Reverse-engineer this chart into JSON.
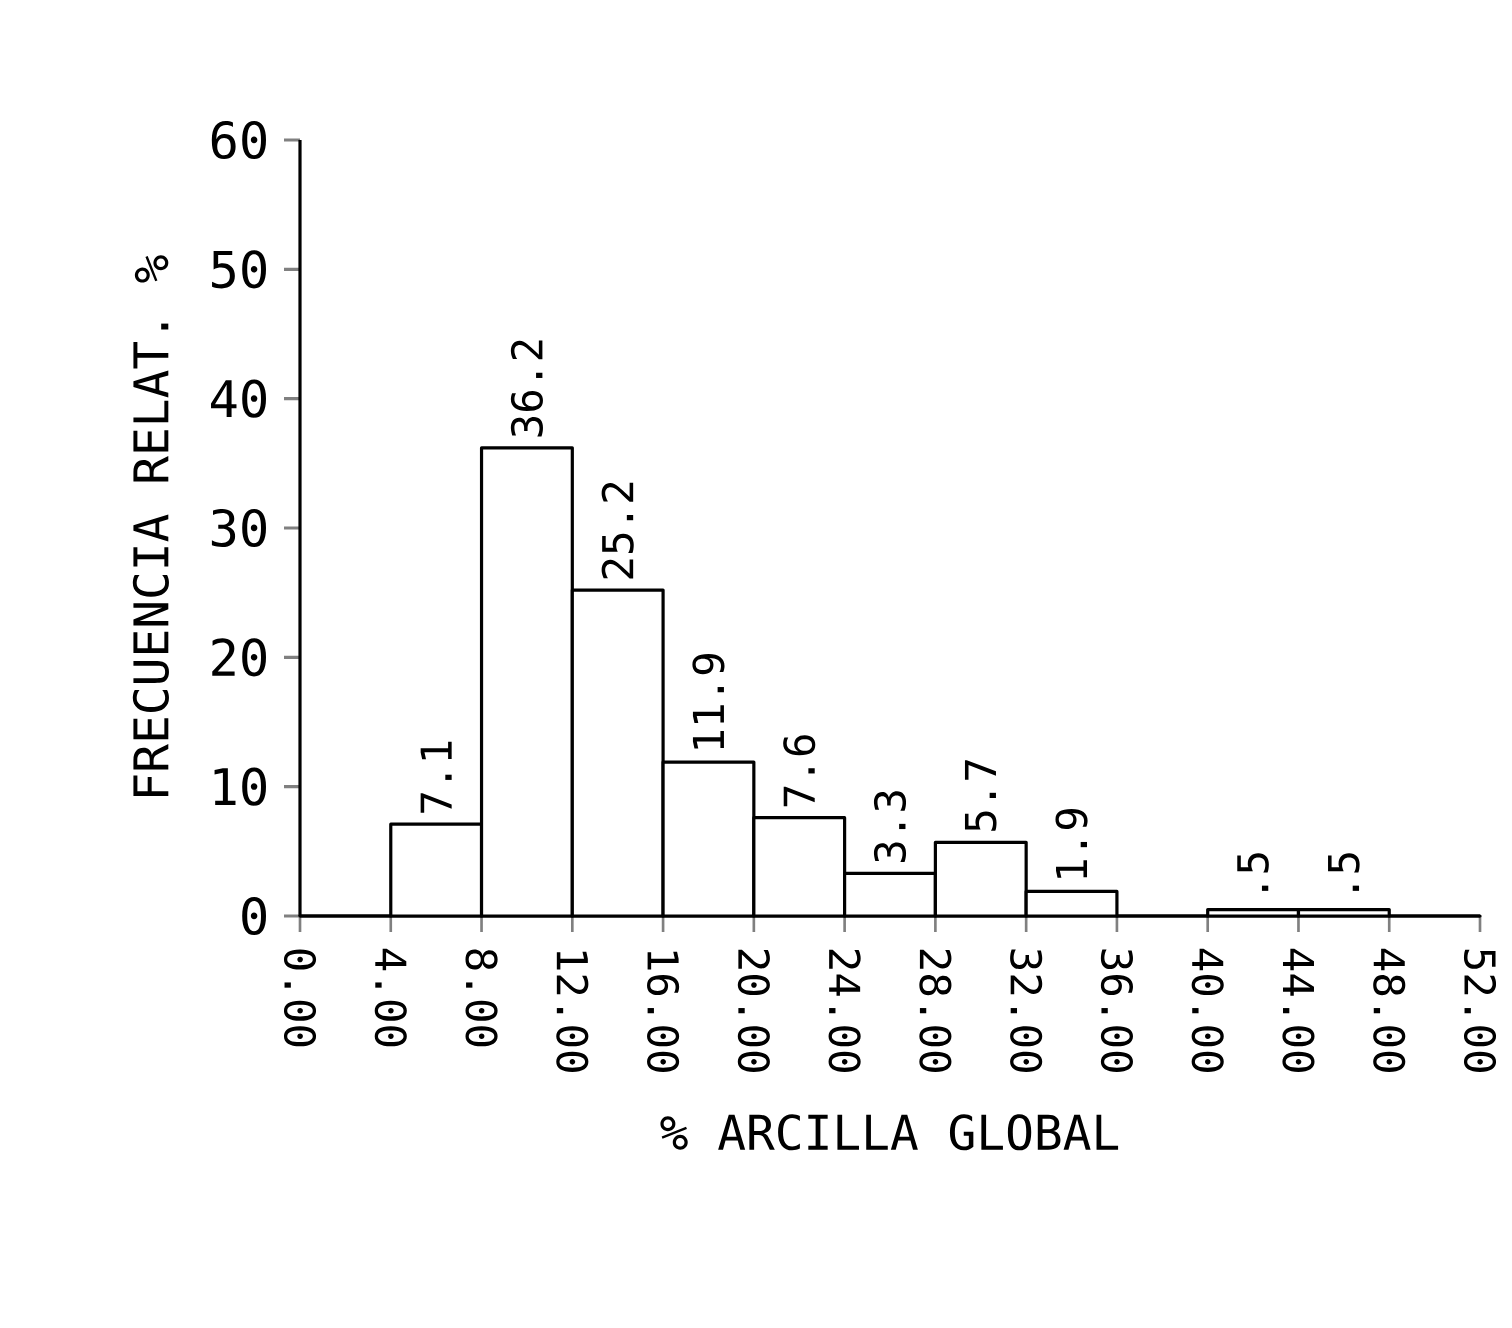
{
  "chart_data": {
    "type": "histogram",
    "xlabel": "% ARCILLA GLOBAL",
    "ylabel": "FRECUENCIA RELAT. %",
    "bins": [
      0,
      4,
      8,
      12,
      16,
      20,
      24,
      28,
      32,
      36,
      40,
      44,
      48,
      52
    ],
    "values": [
      0,
      7.1,
      36.2,
      25.2,
      11.9,
      7.6,
      3.3,
      5.7,
      1.9,
      0,
      0.5,
      0.5,
      0
    ],
    "value_labels": [
      null,
      "7.1",
      "36.2",
      "25.2",
      "11.9",
      "7.6",
      "3.3",
      "5.7",
      "1.9",
      null,
      ".5",
      ".5",
      null
    ],
    "color": "#000000",
    "xlim": [
      0,
      52
    ],
    "ylim": [
      0,
      60
    ],
    "xticks": [
      {
        "value": 0,
        "label": "0.00"
      },
      {
        "value": 4,
        "label": "4.00"
      },
      {
        "value": 8,
        "label": "8.00"
      },
      {
        "value": 12,
        "label": "12.00"
      },
      {
        "value": 16,
        "label": "16.00"
      },
      {
        "value": 20,
        "label": "20.00"
      },
      {
        "value": 24,
        "label": "24.00"
      },
      {
        "value": 28,
        "label": "28.00"
      },
      {
        "value": 32,
        "label": "32.00"
      },
      {
        "value": 36,
        "label": "36.00"
      },
      {
        "value": 40,
        "label": "40.00"
      },
      {
        "value": 44,
        "label": "44.00"
      },
      {
        "value": 48,
        "label": "48.00"
      },
      {
        "value": 52,
        "label": "52.00"
      }
    ],
    "yticks": [
      0,
      10,
      20,
      30,
      40,
      50,
      60
    ]
  }
}
